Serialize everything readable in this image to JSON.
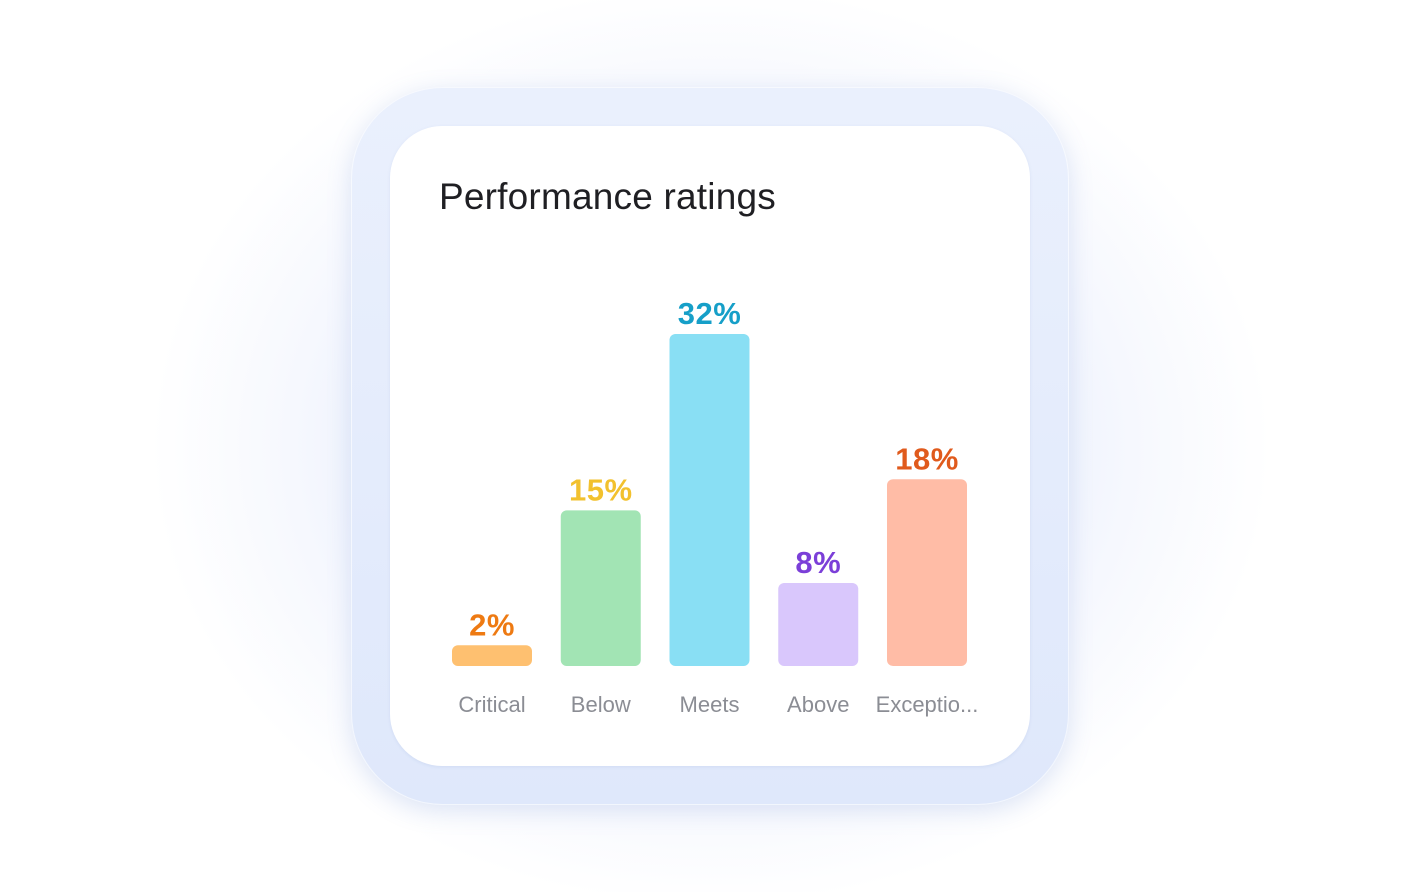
{
  "chart_data": {
    "type": "bar",
    "title": "Performance ratings",
    "categories": [
      "Critical",
      "Below",
      "Meets",
      "Above",
      "Exceptio..."
    ],
    "values": [
      2,
      15,
      32,
      8,
      18
    ],
    "value_labels": [
      "2%",
      "15%",
      "32%",
      "8%",
      "18%"
    ],
    "unit": "%",
    "ylim": [
      0,
      32
    ],
    "grid": false,
    "legend": "none",
    "bar_colors": [
      "#fec070",
      "#a2e4b4",
      "#89dff4",
      "#d9c7fc",
      "#ffbca6"
    ],
    "label_colors": [
      "#ee7a12",
      "#f2c12e",
      "#169fc8",
      "#7b3fd8",
      "#e05a1c"
    ]
  }
}
